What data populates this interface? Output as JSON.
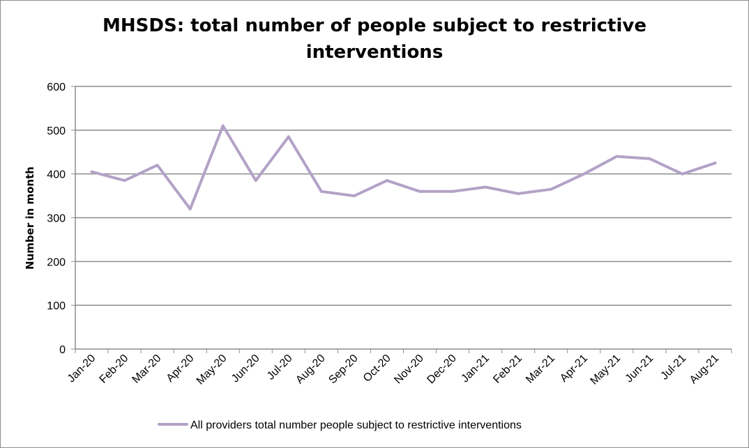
{
  "chart_data": {
    "type": "line",
    "title": "MHSDS: total number of people subject to restrictive interventions",
    "xlabel": "",
    "ylabel": "Number in month",
    "ylim": [
      0,
      600
    ],
    "yticks": [
      0,
      100,
      200,
      300,
      400,
      500,
      600
    ],
    "grid": true,
    "legend_position": "bottom",
    "categories": [
      "Jan-20",
      "Feb-20",
      "Mar-20",
      "Apr-20",
      "May-20",
      "Jun-20",
      "Jul-20",
      "Aug-20",
      "Sep-20",
      "Oct-20",
      "Nov-20",
      "Dec-20",
      "Jan-21",
      "Feb-21",
      "Mar-21",
      "Apr-21",
      "May-21",
      "Jun-21",
      "Jul-21",
      "Aug-21"
    ],
    "series": [
      {
        "name": "All providers total number people subject to restrictive interventions",
        "color": "#b3a2c7",
        "values": [
          405,
          385,
          420,
          320,
          510,
          385,
          485,
          360,
          350,
          385,
          360,
          360,
          370,
          355,
          365,
          400,
          440,
          435,
          400,
          425
        ]
      }
    ]
  }
}
